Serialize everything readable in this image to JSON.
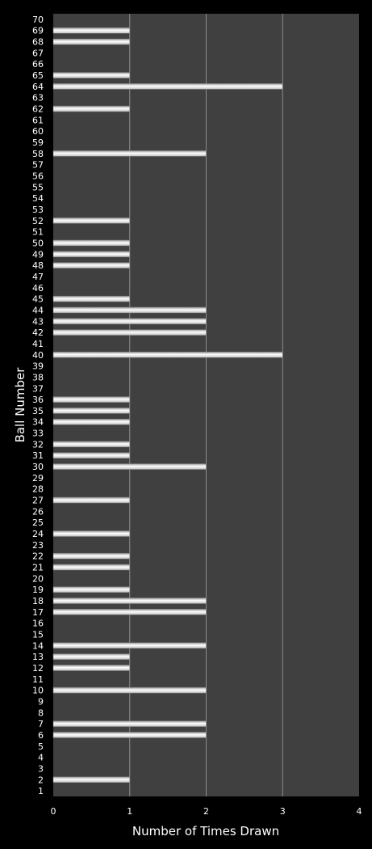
{
  "chart_data": {
    "type": "bar",
    "orientation": "horizontal",
    "xlabel": "Number of Times Drawn",
    "ylabel": "Ball Number",
    "xlim": [
      0,
      4
    ],
    "xticks": [
      0,
      1,
      2,
      3,
      4
    ],
    "grid": true,
    "colors": {
      "background": "#000000",
      "plot_area": "#404040",
      "gridline": "#8c8c8c",
      "bar": "#ffffff",
      "text": "#ffffff"
    },
    "categories": [
      "1",
      "2",
      "3",
      "4",
      "5",
      "6",
      "7",
      "8",
      "9",
      "10",
      "11",
      "12",
      "13",
      "14",
      "15",
      "16",
      "17",
      "18",
      "19",
      "20",
      "21",
      "22",
      "23",
      "24",
      "25",
      "26",
      "27",
      "28",
      "29",
      "30",
      "31",
      "32",
      "33",
      "34",
      "35",
      "36",
      "37",
      "38",
      "39",
      "40",
      "41",
      "42",
      "43",
      "44",
      "45",
      "46",
      "47",
      "48",
      "49",
      "50",
      "51",
      "52",
      "53",
      "54",
      "55",
      "56",
      "57",
      "58",
      "59",
      "60",
      "61",
      "62",
      "63",
      "64",
      "65",
      "66",
      "67",
      "68",
      "69",
      "70"
    ],
    "values": [
      0,
      1,
      0,
      0,
      0,
      2,
      2,
      0,
      0,
      2,
      0,
      1,
      1,
      2,
      0,
      0,
      2,
      2,
      1,
      0,
      1,
      1,
      0,
      1,
      0,
      0,
      1,
      0,
      0,
      2,
      1,
      1,
      0,
      1,
      1,
      1,
      0,
      0,
      0,
      3,
      0,
      2,
      2,
      2,
      1,
      0,
      0,
      1,
      1,
      1,
      0,
      1,
      0,
      0,
      0,
      0,
      0,
      2,
      0,
      0,
      0,
      1,
      0,
      3,
      1,
      0,
      0,
      1,
      1,
      0
    ]
  }
}
